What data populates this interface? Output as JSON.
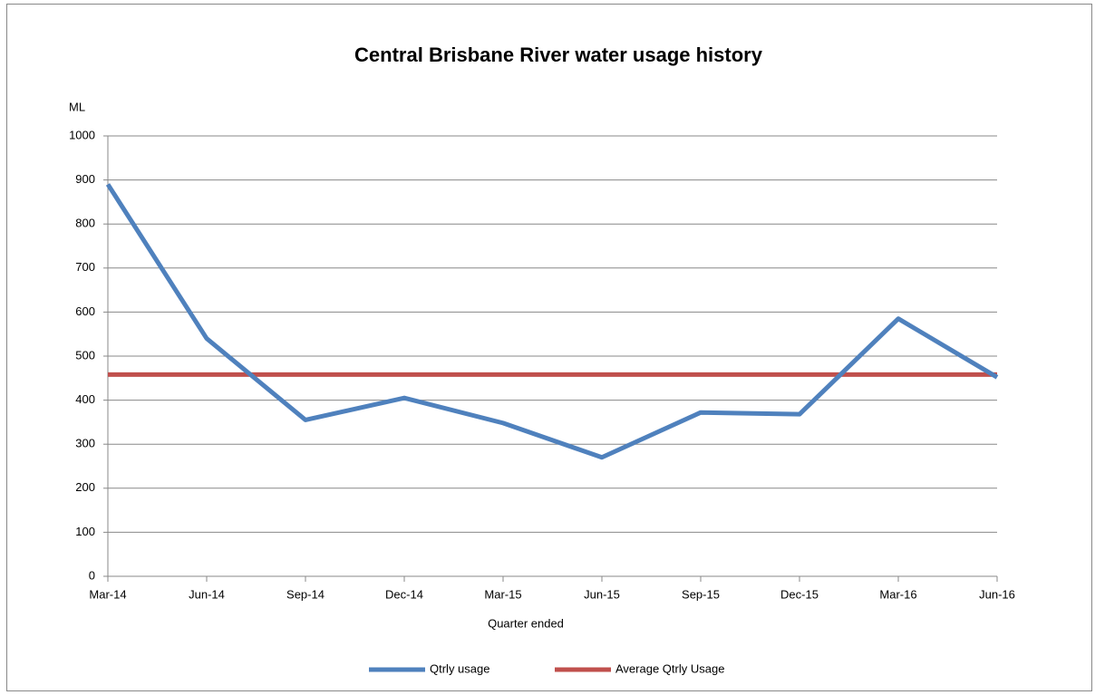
{
  "chart_data": {
    "type": "line",
    "title": "Central Brisbane River water usage history",
    "y_label": "ML",
    "x_label": "Quarter ended",
    "categories": [
      "Mar-14",
      "Jun-14",
      "Sep-14",
      "Dec-14",
      "Mar-15",
      "Jun-15",
      "Sep-15",
      "Dec-15",
      "Mar-16",
      "Jun-16"
    ],
    "series": [
      {
        "name": "Qtrly usage",
        "color": "#4f81bd",
        "values": [
          890,
          540,
          355,
          405,
          348,
          270,
          372,
          368,
          585,
          452
        ]
      },
      {
        "name": "Average Qtrly Usage",
        "color": "#c0504d",
        "values": [
          458,
          458,
          458,
          458,
          458,
          458,
          458,
          458,
          458,
          458
        ]
      }
    ],
    "ylim": [
      0,
      1000
    ],
    "yticks": [
      0,
      100,
      200,
      300,
      400,
      500,
      600,
      700,
      800,
      900,
      1000
    ],
    "grid": true,
    "legend": "bottom"
  }
}
